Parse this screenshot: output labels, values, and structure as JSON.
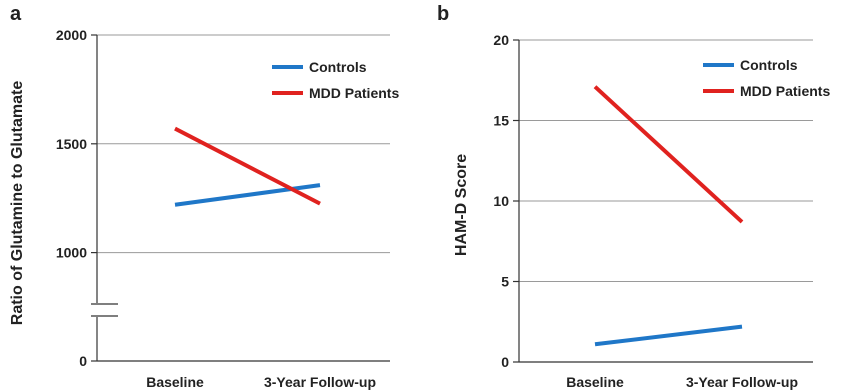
{
  "chart_data": [
    {
      "panel_label": "a",
      "type": "line",
      "categories": [
        "Baseline",
        "3-Year Follow-up"
      ],
      "ylabel": "Ratio of Glutamine to Glutamate",
      "xlabel": "",
      "yticks": [
        0,
        1000,
        1500,
        2000
      ],
      "ylim_upper": [
        750,
        2000
      ],
      "axis_break": true,
      "grid": true,
      "legend_position": "top-right",
      "series": [
        {
          "name": "Controls",
          "color": "#1f77c8",
          "values": [
            1220,
            1310
          ]
        },
        {
          "name": "MDD Patients",
          "color": "#e0221f",
          "values": [
            1570,
            1225
          ]
        }
      ]
    },
    {
      "panel_label": "b",
      "type": "line",
      "categories": [
        "Baseline",
        "3-Year Follow-up"
      ],
      "ylabel": "HAM-D Score",
      "xlabel": "",
      "yticks": [
        0,
        5,
        10,
        15,
        20
      ],
      "ylim": [
        0,
        20
      ],
      "grid": true,
      "legend_position": "top-right",
      "series": [
        {
          "name": "Controls",
          "color": "#1f77c8",
          "values": [
            1.1,
            2.2
          ]
        },
        {
          "name": "MDD Patients",
          "color": "#e0221f",
          "values": [
            17.1,
            8.7
          ]
        }
      ]
    }
  ]
}
